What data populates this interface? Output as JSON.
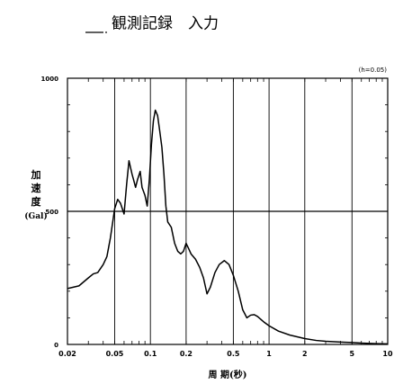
{
  "chart_data": {
    "type": "line",
    "legend": {
      "series_name": "観測記録　入力",
      "placement": "top-center"
    },
    "annotation": "(h=0.05)",
    "xlabel": "周 期(秒)",
    "ylabel": [
      "加",
      "速",
      "度",
      "(Gal)"
    ],
    "x_scale": "log",
    "xlim": [
      0.02,
      10
    ],
    "ylim": [
      0,
      1000
    ],
    "x_ticks": [
      {
        "value": 0.02,
        "label": "0.02"
      },
      {
        "value": 0.05,
        "label": "0.05"
      },
      {
        "value": 0.1,
        "label": "0.1"
      },
      {
        "value": 0.2,
        "label": "0.2"
      },
      {
        "value": 0.5,
        "label": "0.5"
      },
      {
        "value": 1,
        "label": "1"
      },
      {
        "value": 2,
        "label": "2"
      },
      {
        "value": 5,
        "label": "5"
      },
      {
        "value": 10,
        "label": "10"
      }
    ],
    "y_ticks": [
      {
        "value": 0,
        "label": "0"
      },
      {
        "value": 500,
        "label": "500"
      },
      {
        "value": 1000,
        "label": "1000"
      }
    ],
    "grid": true,
    "series": [
      {
        "color": "#000000",
        "x": [
          0.02,
          0.025,
          0.03,
          0.033,
          0.036,
          0.04,
          0.043,
          0.046,
          0.05,
          0.053,
          0.056,
          0.06,
          0.063,
          0.066,
          0.07,
          0.072,
          0.075,
          0.078,
          0.082,
          0.085,
          0.09,
          0.094,
          0.098,
          0.102,
          0.106,
          0.11,
          0.115,
          0.12,
          0.125,
          0.13,
          0.135,
          0.14,
          0.15,
          0.16,
          0.17,
          0.18,
          0.19,
          0.2,
          0.21,
          0.22,
          0.24,
          0.26,
          0.28,
          0.3,
          0.32,
          0.35,
          0.38,
          0.42,
          0.46,
          0.5,
          0.55,
          0.6,
          0.65,
          0.7,
          0.75,
          0.8,
          0.9,
          1.0,
          1.2,
          1.5,
          2.0,
          2.5,
          3.0,
          4.0,
          5.0,
          6.0,
          7.0,
          8.0,
          10.0
        ],
        "y": [
          210,
          220,
          250,
          265,
          270,
          300,
          330,
          400,
          510,
          545,
          530,
          490,
          600,
          690,
          640,
          620,
          590,
          620,
          650,
          590,
          560,
          520,
          620,
          750,
          840,
          880,
          860,
          800,
          740,
          640,
          520,
          460,
          440,
          380,
          350,
          340,
          350,
          380,
          360,
          340,
          320,
          290,
          250,
          190,
          215,
          270,
          300,
          315,
          300,
          260,
          200,
          130,
          100,
          110,
          112,
          105,
          85,
          70,
          50,
          35,
          22,
          15,
          12,
          9,
          7,
          5,
          4,
          3,
          2
        ]
      }
    ]
  }
}
